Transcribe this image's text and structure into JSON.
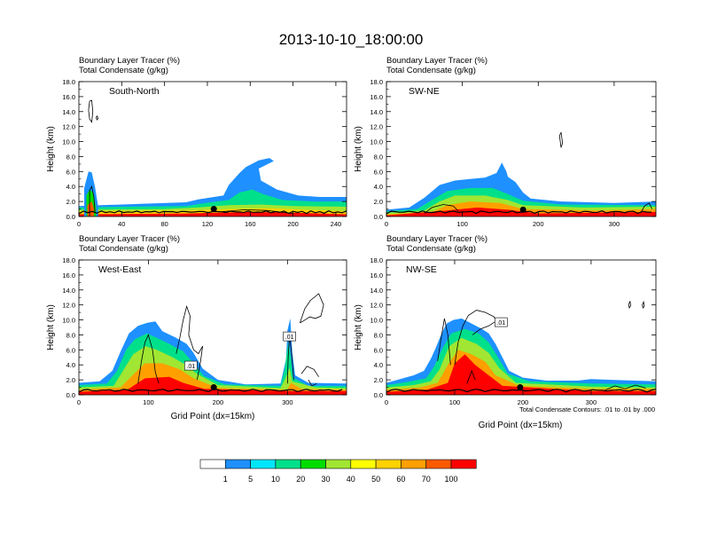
{
  "title": "2013-10-10_18:00:00",
  "chart_data": [
    {
      "type": "heatmap",
      "title_lines": [
        "Boundary Layer Tracer   (%)",
        "Total Condensate   (g/kg)"
      ],
      "panel_label": "South-North",
      "ylabel": "Height (km)",
      "xlabel": "",
      "xlim": [
        0,
        250
      ],
      "ylim": [
        0,
        18
      ],
      "xticks": [
        "0",
        "40",
        "80",
        "120",
        "160",
        "200",
        "240"
      ],
      "yticks": [
        "0.0",
        "2.0",
        "4.0",
        "6.0",
        "8.0",
        "10.0",
        "12.0",
        "14.0",
        "16.0",
        "18.0"
      ],
      "note": ""
    },
    {
      "type": "heatmap",
      "title_lines": [
        "Boundary Layer Tracer   (%)",
        "Total Condensate   (g/kg)"
      ],
      "panel_label": "SW-NE",
      "ylabel": "Height (km)",
      "xlabel": "",
      "xlim": [
        0,
        355
      ],
      "ylim": [
        0,
        18
      ],
      "xticks": [
        "0",
        "100",
        "200",
        "300"
      ],
      "yticks": [
        "0.0",
        "2.0",
        "4.0",
        "6.0",
        "8.0",
        "10.0",
        "12.0",
        "14.0",
        "16.0",
        "18.0"
      ],
      "note": ""
    },
    {
      "type": "heatmap",
      "title_lines": [
        "Boundary Layer Tracer   (%)",
        "Total Condensate   (g/kg)"
      ],
      "panel_label": "West-East",
      "ylabel": "Height (km)",
      "xlabel": "Grid Point (dx=15km)",
      "xlim": [
        0,
        385
      ],
      "ylim": [
        0,
        18
      ],
      "xticks": [
        "0",
        "100",
        "200",
        "300"
      ],
      "yticks": [
        "0.0",
        "2.0",
        "4.0",
        "6.0",
        "8.0",
        "10.0",
        "12.0",
        "14.0",
        "16.0",
        "18.0"
      ],
      "contour_labels": [
        ".01",
        ".01"
      ],
      "note": ""
    },
    {
      "type": "heatmap",
      "title_lines": [
        "Boundary Layer Tracer   (%)",
        "Total Condensate   (g/kg)"
      ],
      "panel_label": "NW-SE",
      "ylabel": "Height (km)",
      "xlabel": "Grid Point (dx=15km)",
      "xlim": [
        0,
        395
      ],
      "ylim": [
        0,
        18
      ],
      "xticks": [
        "0",
        "100",
        "200",
        "300"
      ],
      "yticks": [
        "0.0",
        "2.0",
        "4.0",
        "6.0",
        "8.0",
        "10.0",
        "12.0",
        "14.0",
        "16.0",
        "18.0"
      ],
      "contour_labels": [
        ".01"
      ],
      "note": "Total Condensate Contours: .01 to .01 by .000"
    }
  ],
  "colorbar": {
    "labels": [
      "1",
      "5",
      "10",
      "20",
      "30",
      "40",
      "50",
      "60",
      "70",
      "100"
    ],
    "colors": [
      "#ffffff",
      "#1e90ff",
      "#00e5ff",
      "#00e08a",
      "#00dd00",
      "#a0e632",
      "#ffff00",
      "#ffd200",
      "#ffa000",
      "#ff5a00",
      "#ff0000"
    ]
  }
}
